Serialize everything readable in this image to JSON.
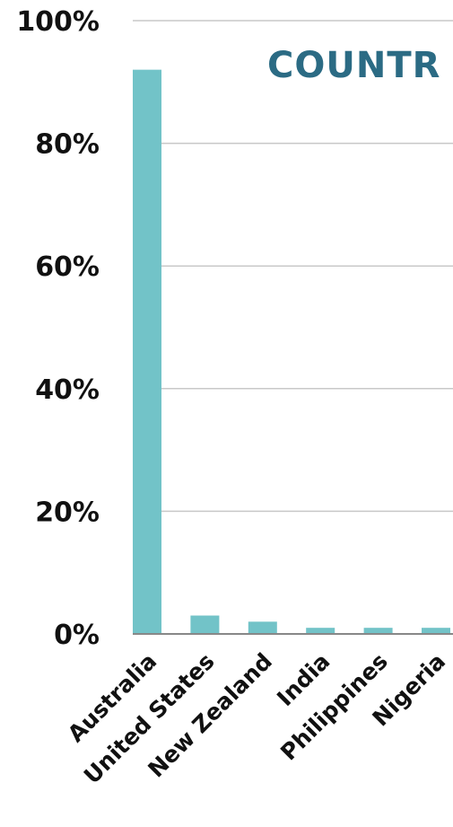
{
  "chart_data": {
    "type": "bar",
    "title": "COUNTR",
    "categories": [
      "Australia",
      "United States",
      "New Zealand",
      "India",
      "Philippines",
      "Nigeria"
    ],
    "values": [
      92,
      3,
      2,
      1,
      1,
      1
    ],
    "ylim": [
      0,
      100
    ],
    "yticks": [
      0,
      20,
      40,
      60,
      80,
      100
    ],
    "ytick_labels": [
      "0%",
      "20%",
      "40%",
      "60%",
      "80%",
      "100%"
    ],
    "grid": true,
    "colors": {
      "bar": "#72c3c8",
      "title": "#2b6b84",
      "grid": "#c8c8c8",
      "axis": "#888888"
    }
  }
}
